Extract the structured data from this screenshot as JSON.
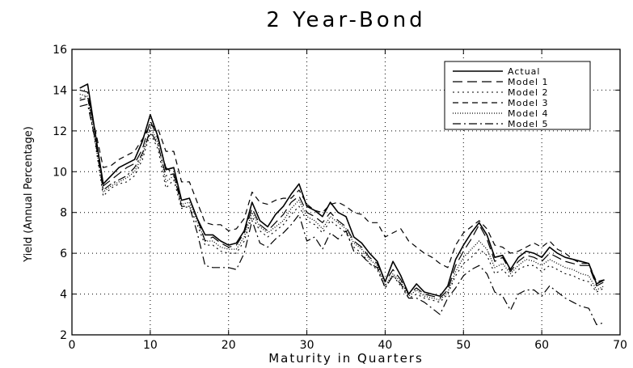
{
  "chart_data": {
    "type": "line",
    "title": "2 Year-Bond",
    "xlabel": "Maturity in Quarters",
    "ylabel": "Yield (Annual Percentage)",
    "xlim": [
      0,
      70
    ],
    "ylim": [
      2,
      16
    ],
    "x_ticks": [
      0,
      10,
      20,
      30,
      40,
      50,
      60,
      70
    ],
    "y_ticks": [
      2,
      4,
      6,
      8,
      10,
      12,
      14,
      16
    ],
    "grid": true,
    "legend_position": "top-right",
    "x": [
      1,
      2,
      3,
      4,
      5,
      6,
      7,
      8,
      9,
      10,
      11,
      12,
      13,
      14,
      15,
      16,
      17,
      18,
      19,
      20,
      21,
      22,
      23,
      24,
      25,
      26,
      27,
      28,
      29,
      30,
      31,
      32,
      33,
      34,
      35,
      36,
      37,
      38,
      39,
      40,
      41,
      42,
      43,
      44,
      45,
      46,
      47,
      48,
      49,
      50,
      51,
      52,
      53,
      54,
      55,
      56,
      57,
      58,
      59,
      60,
      61,
      62,
      63,
      64,
      65,
      66,
      67,
      68
    ],
    "series": [
      {
        "name": "Actual",
        "dash": "",
        "width": 1.6,
        "values": [
          14.1,
          14.3,
          11.8,
          9.4,
          9.8,
          10.2,
          10.4,
          10.6,
          11.5,
          12.8,
          11.7,
          10.1,
          10.2,
          8.6,
          8.7,
          7.7,
          6.9,
          6.9,
          6.6,
          6.4,
          6.5,
          7.1,
          8.5,
          7.6,
          7.3,
          7.9,
          8.3,
          8.9,
          9.4,
          8.3,
          8.1,
          7.8,
          8.5,
          8.0,
          7.8,
          6.8,
          6.5,
          6.0,
          5.6,
          4.6,
          5.6,
          4.9,
          4.0,
          4.5,
          4.1,
          4.0,
          3.9,
          4.4,
          5.7,
          6.4,
          7.0,
          7.5,
          6.9,
          5.8,
          5.9,
          5.2,
          5.8,
          6.1,
          6.0,
          5.8,
          6.3,
          6.0,
          5.8,
          5.7,
          5.6,
          5.5,
          4.5,
          4.7
        ]
      },
      {
        "name": "Model 1",
        "dash": "12,6",
        "width": 1.2,
        "values": [
          14.0,
          13.9,
          11.8,
          9.3,
          9.6,
          9.9,
          10.2,
          10.4,
          11.1,
          12.5,
          11.6,
          10.2,
          9.9,
          8.6,
          8.7,
          7.7,
          6.6,
          6.8,
          6.5,
          6.3,
          6.4,
          7.0,
          8.2,
          7.4,
          7.1,
          7.5,
          7.9,
          8.5,
          8.8,
          8.0,
          7.8,
          7.5,
          8.0,
          7.6,
          7.3,
          6.6,
          6.3,
          5.8,
          5.5,
          4.6,
          5.2,
          4.7,
          4.0,
          4.3,
          4.0,
          3.9,
          3.8,
          4.2,
          5.4,
          6.1,
          6.7,
          7.4,
          6.7,
          5.6,
          5.8,
          5.1,
          5.6,
          5.9,
          5.8,
          5.6,
          6.0,
          5.8,
          5.6,
          5.5,
          5.4,
          5.4,
          4.4,
          4.6
        ]
      },
      {
        "name": "Model 2",
        "dash": "2,4",
        "width": 1.1,
        "values": [
          13.6,
          13.7,
          11.3,
          8.8,
          9.2,
          9.4,
          9.5,
          9.8,
          10.6,
          11.9,
          11.1,
          9.2,
          9.6,
          8.2,
          8.3,
          7.4,
          6.4,
          6.4,
          6.1,
          6.0,
          6.0,
          6.6,
          7.8,
          7.1,
          6.8,
          7.1,
          7.4,
          7.9,
          8.3,
          7.6,
          7.4,
          7.0,
          7.6,
          7.3,
          7.0,
          6.3,
          6.0,
          5.5,
          5.2,
          4.3,
          4.9,
          4.4,
          3.8,
          4.0,
          3.8,
          3.7,
          3.6,
          4.0,
          4.9,
          5.5,
          5.8,
          6.2,
          5.9,
          5.0,
          5.2,
          4.8,
          5.2,
          5.4,
          5.4,
          5.1,
          5.4,
          5.2,
          5.0,
          4.9,
          4.7,
          4.6,
          4.1,
          4.3
        ]
      },
      {
        "name": "Model 3",
        "dash": "7,5",
        "width": 1.2,
        "values": [
          13.5,
          13.6,
          12.0,
          10.2,
          10.3,
          10.6,
          10.8,
          11.0,
          11.6,
          12.3,
          12.1,
          11.0,
          11.0,
          9.5,
          9.5,
          8.5,
          7.5,
          7.4,
          7.4,
          7.1,
          7.2,
          7.7,
          9.0,
          8.5,
          8.4,
          8.6,
          8.7,
          8.7,
          9.1,
          8.4,
          8.1,
          8.0,
          8.4,
          8.5,
          8.3,
          8.0,
          7.9,
          7.5,
          7.5,
          6.8,
          7.0,
          7.2,
          6.6,
          6.3,
          6.0,
          5.8,
          5.5,
          5.3,
          6.4,
          7.0,
          7.3,
          7.6,
          7.2,
          6.4,
          6.3,
          6.0,
          6.1,
          6.3,
          6.5,
          6.3,
          6.6,
          6.2,
          6.0,
          5.7,
          5.5,
          5.5,
          4.6,
          4.7
        ]
      },
      {
        "name": "Model 4",
        "dash": "1,2",
        "width": 1.3,
        "values": [
          13.8,
          13.7,
          11.4,
          9.0,
          9.3,
          9.5,
          9.7,
          10.0,
          10.8,
          12.2,
          11.4,
          9.5,
          9.8,
          8.4,
          8.5,
          7.6,
          6.6,
          6.6,
          6.3,
          6.2,
          6.2,
          6.8,
          8.0,
          7.3,
          7.0,
          7.3,
          7.6,
          8.2,
          8.6,
          7.8,
          7.6,
          7.2,
          7.8,
          7.5,
          7.2,
          6.5,
          6.2,
          5.7,
          5.4,
          4.4,
          5.0,
          4.6,
          3.9,
          4.2,
          3.9,
          3.8,
          3.7,
          4.1,
          5.1,
          5.8,
          6.2,
          6.6,
          6.2,
          5.3,
          5.5,
          5.0,
          5.4,
          5.7,
          5.6,
          5.4,
          5.7,
          5.5,
          5.3,
          5.2,
          5.0,
          4.9,
          4.2,
          4.4
        ]
      },
      {
        "name": "Model 5",
        "dash": "10,4,2,4",
        "width": 1.2,
        "values": [
          13.2,
          13.3,
          11.5,
          9.1,
          9.4,
          9.6,
          9.8,
          10.2,
          10.9,
          12.0,
          11.3,
          9.8,
          9.9,
          8.3,
          8.3,
          7.0,
          5.4,
          5.3,
          5.3,
          5.3,
          5.2,
          6.0,
          7.6,
          6.5,
          6.3,
          6.7,
          7.0,
          7.4,
          7.9,
          6.6,
          6.8,
          6.2,
          7.0,
          6.7,
          7.1,
          6.1,
          5.9,
          5.5,
          5.3,
          4.3,
          4.9,
          4.5,
          3.8,
          3.8,
          3.6,
          3.3,
          3.0,
          3.8,
          4.3,
          4.9,
          5.2,
          5.4,
          5.0,
          4.1,
          3.9,
          3.2,
          4.0,
          4.2,
          4.2,
          3.9,
          4.4,
          4.1,
          3.8,
          3.6,
          3.4,
          3.3,
          2.5,
          2.6
        ]
      }
    ]
  }
}
